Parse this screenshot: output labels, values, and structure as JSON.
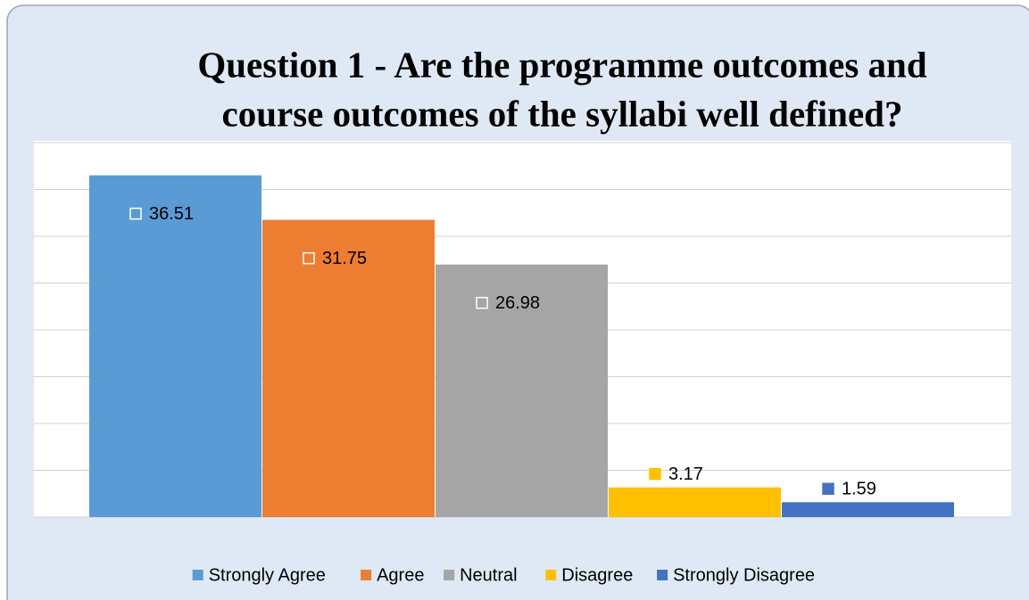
{
  "chart_data": {
    "type": "bar",
    "title": [
      "Question 1 - Are the programme outcomes and",
      "course outcomes of the syllabi well defined?"
    ],
    "categories": [
      "Strongly Agree",
      "Agree",
      "Neutral",
      "Disagree",
      "Strongly Disagree"
    ],
    "values": [
      36.51,
      31.75,
      26.98,
      3.17,
      1.59
    ],
    "colors": [
      "#5b9bd5",
      "#ed7d31",
      "#a5a5a5",
      "#ffc000",
      "#4472c4"
    ],
    "ylim": [
      0,
      40
    ],
    "yticks": [
      0,
      5,
      10,
      15,
      20,
      25,
      30,
      35,
      40
    ],
    "grid": true,
    "legend": "bottom"
  }
}
